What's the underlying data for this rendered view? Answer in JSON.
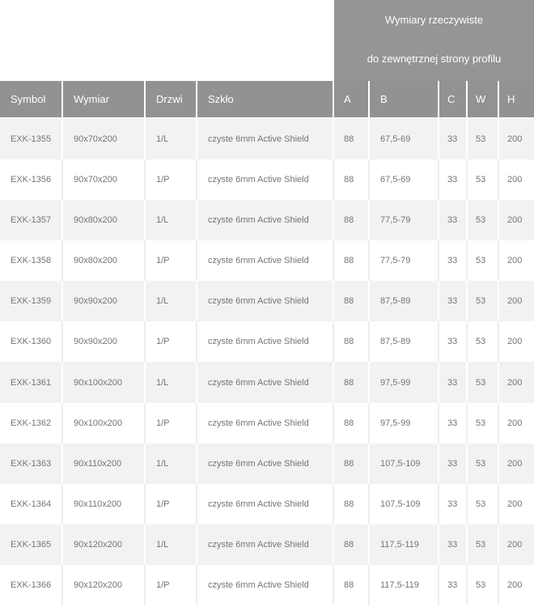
{
  "title_block": {
    "line1": "Wymiary rzeczywiste",
    "line2": "do zewnętrznej strony profilu"
  },
  "table": {
    "columns": [
      "Symbol",
      "Wymiar",
      "Drzwi",
      "Szkło",
      "A",
      "B",
      "C",
      "W",
      "H"
    ],
    "rows": [
      [
        "EXK-1355",
        "90x70x200",
        "1/L",
        "czyste 6mm Active Shield",
        "88",
        "67,5-69",
        "33",
        "53",
        "200"
      ],
      [
        "EXK-1356",
        "90x70x200",
        "1/P",
        "czyste 6mm Active Shield",
        "88",
        "67,5-69",
        "33",
        "53",
        "200"
      ],
      [
        "EXK-1357",
        "90x80x200",
        "1/L",
        "czyste 6mm Active Shield",
        "88",
        "77,5-79",
        "33",
        "53",
        "200"
      ],
      [
        "EXK-1358",
        "90x80x200",
        "1/P",
        "czyste 6mm Active Shield",
        "88",
        "77,5-79",
        "33",
        "53",
        "200"
      ],
      [
        "EXK-1359",
        "90x90x200",
        "1/L",
        "czyste 6mm Active Shield",
        "88",
        "87,5-89",
        "33",
        "53",
        "200"
      ],
      [
        "EXK-1360",
        "90x90x200",
        "1/P",
        "czyste 6mm Active Shield",
        "88",
        "87,5-89",
        "33",
        "53",
        "200"
      ],
      [
        "EXK-1361",
        "90x100x200",
        "1/L",
        "czyste 6mm Active Shield",
        "88",
        "97,5-99",
        "33",
        "53",
        "200"
      ],
      [
        "EXK-1362",
        "90x100x200",
        "1/P",
        "czyste 6mm Active Shield",
        "88",
        "97,5-99",
        "33",
        "53",
        "200"
      ],
      [
        "EXK-1363",
        "90x110x200",
        "1/L",
        "czyste 6mm Active Shield",
        "88",
        "107,5-109",
        "33",
        "53",
        "200"
      ],
      [
        "EXK-1364",
        "90x110x200",
        "1/P",
        "czyste 6mm Active Shield",
        "88",
        "107,5-109",
        "33",
        "53",
        "200"
      ],
      [
        "EXK-1365",
        "90x120x200",
        "1/L",
        "czyste 6mm Active Shield",
        "88",
        "117,5-119",
        "33",
        "53",
        "200"
      ],
      [
        "EXK-1366",
        "90x120x200",
        "1/P",
        "czyste 6mm Active Shield",
        "88",
        "117,5-119",
        "33",
        "53",
        "200"
      ]
    ]
  },
  "colors": {
    "title_block_bg": "#959595",
    "header_row_bg": "#929292",
    "stripe_row_bg": "#f2f2f2",
    "header_text": "#ffffff",
    "body_text": "#757575"
  }
}
